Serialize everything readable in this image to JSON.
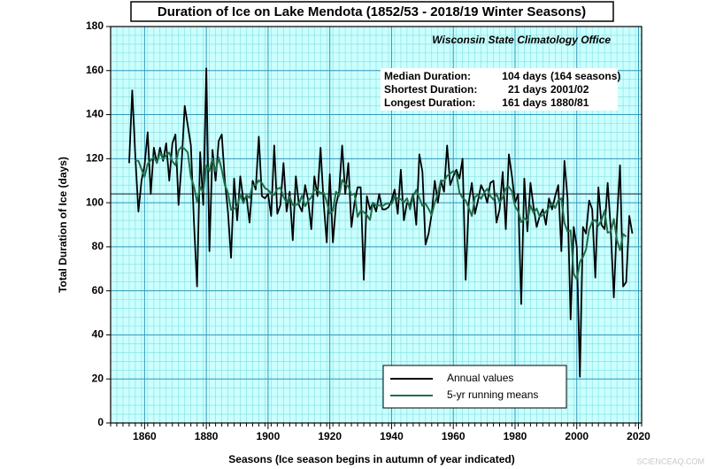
{
  "chart_data": {
    "type": "line",
    "title": "Duration of Ice on Lake Mendota (1852/53 - 2018/19 Winter Seasons)",
    "x_label": "Seasons (Ice season begins in autumn of year indicated)",
    "y_label": "Total Duration of Ice (days)",
    "source": "Wisconsin State Climatology Office",
    "stats": [
      [
        "Median Duration:",
        "104 days",
        "(164 seasons)"
      ],
      [
        "Shortest Duration:",
        "21 days",
        "2001/02"
      ],
      [
        "Longest Duration:",
        "161 days",
        "1880/81"
      ]
    ],
    "median": 104,
    "watermark": "SCIENCEAQ.COM",
    "xlim": [
      1849,
      2021
    ],
    "ylim": [
      0,
      180
    ],
    "xticks": [
      1860,
      1880,
      1900,
      1920,
      1940,
      1960,
      1980,
      2000,
      2020
    ],
    "yticks": [
      0,
      20,
      40,
      60,
      80,
      100,
      120,
      140,
      160,
      180
    ],
    "grid": true,
    "minor_grid": true,
    "legend": "lower right",
    "x": [
      1855,
      1856,
      1857,
      1858,
      1859,
      1860,
      1861,
      1862,
      1863,
      1864,
      1865,
      1866,
      1867,
      1868,
      1869,
      1870,
      1871,
      1872,
      1873,
      1874,
      1875,
      1876,
      1877,
      1878,
      1879,
      1880,
      1881,
      1882,
      1883,
      1884,
      1885,
      1886,
      1887,
      1888,
      1889,
      1890,
      1891,
      1892,
      1893,
      1894,
      1895,
      1896,
      1897,
      1898,
      1899,
      1900,
      1901,
      1902,
      1903,
      1904,
      1905,
      1906,
      1907,
      1908,
      1909,
      1910,
      1911,
      1912,
      1913,
      1914,
      1915,
      1916,
      1917,
      1918,
      1919,
      1920,
      1921,
      1922,
      1923,
      1924,
      1925,
      1926,
      1927,
      1928,
      1929,
      1930,
      1931,
      1932,
      1933,
      1934,
      1935,
      1936,
      1937,
      1938,
      1939,
      1940,
      1941,
      1942,
      1943,
      1944,
      1945,
      1946,
      1947,
      1948,
      1949,
      1950,
      1951,
      1952,
      1953,
      1954,
      1955,
      1956,
      1957,
      1958,
      1959,
      1960,
      1961,
      1962,
      1963,
      1964,
      1965,
      1966,
      1967,
      1968,
      1969,
      1970,
      1971,
      1972,
      1973,
      1974,
      1975,
      1976,
      1977,
      1978,
      1979,
      1980,
      1981,
      1982,
      1983,
      1984,
      1985,
      1986,
      1987,
      1988,
      1989,
      1990,
      1991,
      1992,
      1993,
      1994,
      1995,
      1996,
      1997,
      1998,
      1999,
      2000,
      2001,
      2002,
      2003,
      2004,
      2005,
      2006,
      2007,
      2008,
      2009,
      2010,
      2011,
      2012,
      2013,
      2014,
      2015,
      2016,
      2017,
      2018
    ],
    "series": [
      {
        "name": "Annual values",
        "color": "#000000",
        "values": [
          118,
          151,
          121,
          96,
          110,
          117,
          132,
          104,
          125,
          118,
          125,
          119,
          127,
          110,
          127,
          131,
          99,
          118,
          144,
          135,
          126,
          91,
          62,
          123,
          99,
          161,
          78,
          124,
          110,
          128,
          131,
          110,
          96,
          75,
          111,
          92,
          112,
          101,
          103,
          91,
          110,
          106,
          130,
          103,
          102,
          104,
          94,
          126,
          95,
          99,
          118,
          96,
          105,
          83,
          112,
          99,
          96,
          108,
          101,
          88,
          112,
          103,
          125,
          100,
          82,
          113,
          82,
          99,
          105,
          126,
          104,
          118,
          89,
          100,
          107,
          107,
          65,
          103,
          97,
          100,
          96,
          104,
          97,
          97,
          98,
          101,
          106,
          95,
          115,
          92,
          100,
          99,
          104,
          90,
          122,
          114,
          81,
          86,
          95,
          110,
          100,
          110,
          105,
          126,
          108,
          112,
          115,
          111,
          120,
          65,
          100,
          109,
          95,
          101,
          108,
          105,
          100,
          109,
          110,
          91,
          97,
          114,
          88,
          122,
          112,
          100,
          104,
          54,
          111,
          87,
          109,
          98,
          89,
          94,
          97,
          90,
          102,
          97,
          103,
          108,
          78,
          119,
          102,
          47,
          89,
          80,
          21,
          89,
          86,
          101,
          97,
          66,
          107,
          90,
          88,
          109,
          88,
          57,
          92,
          117,
          62,
          64,
          94,
          86
        ]
      },
      {
        "name": "5-yr running means",
        "color": "#1f6e4a",
        "values": [
          null,
          null,
          119.2,
          119,
          115.2,
          111.8,
          117.6,
          119.2,
          120.8,
          118.2,
          122.8,
          119.8,
          121.6,
          122.8,
          118.8,
          117,
          123.8,
          125.4,
          124.4,
          122.8,
          111.6,
          107.4,
          100.2,
          107.2,
          104.6,
          117,
          114.4,
          120.2,
          114.2,
          120.6,
          115,
          108,
          104.6,
          96.8,
          97.2,
          98.2,
          103.8,
          99.8,
          103.4,
          102.2,
          108,
          108,
          110.2,
          109,
          106.6,
          105.8,
          104.2,
          103.6,
          106.4,
          106.8,
          102.6,
          100.2,
          102.8,
          99,
          99,
          99.6,
          103.2,
          98.4,
          101,
          102.4,
          105.8,
          105.6,
          104.4,
          104.6,
          100.4,
          95.2,
          96.2,
          105,
          103.2,
          110.4,
          108.4,
          107.4,
          103.6,
          104.2,
          93.6,
          96.4,
          95.8,
          94.4,
          92.2,
          100,
          98.8,
          98.8,
          98.4,
          99.4,
          99.8,
          99.4,
          103,
          101.8,
          101.6,
          100.2,
          102,
          97,
          103,
          105.8,
          102.2,
          98.6,
          99.6,
          97.2,
          94.4,
          100.2,
          104,
          110.2,
          109.8,
          112.2,
          113.2,
          114.4,
          113.2,
          104.6,
          102.2,
          101,
          97.8,
          94,
          102.6,
          103.6,
          101.8,
          104.6,
          106.4,
          103,
          101.4,
          104.2,
          100,
          102.4,
          106.6,
          107.2,
          105.2,
          98.4,
          96.2,
          91.2,
          93,
          91.8,
          98.8,
          95.4,
          97.4,
          93.6,
          94.4,
          96,
          97.8,
          100,
          97.6,
          101,
          102,
          90.8,
          87,
          87.4,
          67.8,
          65.2,
          73,
          75.4,
          78.8,
          87.8,
          91.4,
          92.2,
          89.6,
          92,
          96.4,
          86.4,
          86.8,
          92.6,
          83.2,
          78.4,
          85.8,
          84.6,
          null,
          null
        ]
      }
    ]
  }
}
